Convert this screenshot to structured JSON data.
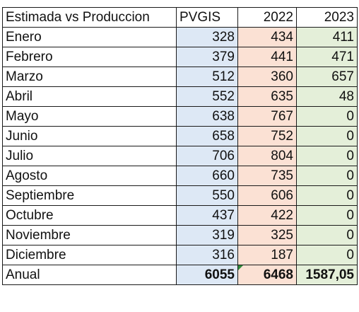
{
  "table": {
    "headers": [
      "Estimada vs Produccion",
      "PVGIS",
      "2022",
      "2023"
    ],
    "rows": [
      [
        "Enero",
        "328",
        "434",
        "411"
      ],
      [
        "Febrero",
        "379",
        "441",
        "471"
      ],
      [
        "Marzo",
        "512",
        "360",
        "657"
      ],
      [
        "Abril",
        "552",
        "635",
        "48"
      ],
      [
        "Mayo",
        "638",
        "767",
        "0"
      ],
      [
        "Junio",
        "658",
        "752",
        "0"
      ],
      [
        "Julio",
        "706",
        "804",
        "0"
      ],
      [
        "Agosto",
        "660",
        "735",
        "0"
      ],
      [
        "Septiembre",
        "550",
        "606",
        "0"
      ],
      [
        "Octubre",
        "437",
        "422",
        "0"
      ],
      [
        "Noviembre",
        "319",
        "325",
        "0"
      ],
      [
        "Diciembre",
        "316",
        "187",
        "0"
      ]
    ],
    "total": [
      "Anual",
      "6055",
      "6468",
      "1587,05"
    ]
  },
  "colors": {
    "pvgis_fill": "#dde8f5",
    "y2022_fill": "#fbe1d4",
    "y2023_fill": "#e4efd9",
    "error_indicator": "#2e8b3a"
  }
}
